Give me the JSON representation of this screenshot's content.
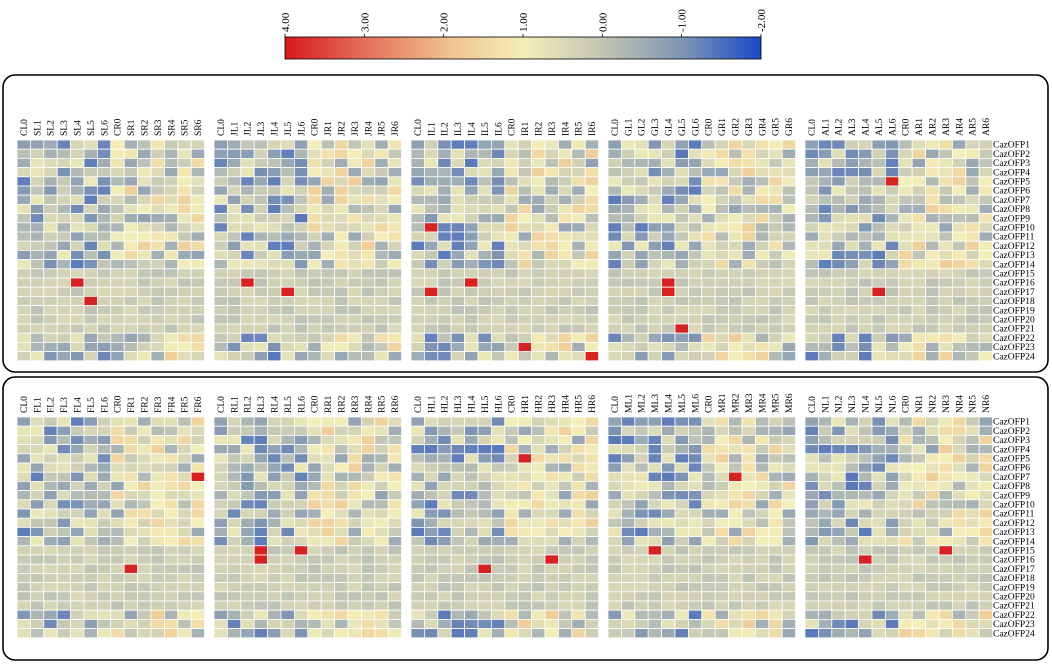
{
  "chart_data": {
    "type": "heatmap",
    "title": "",
    "colorbar": {
      "ticks": [
        "4.00",
        "3.00",
        "2.00",
        "1.00",
        "0.00",
        "-1.00",
        "-2.00"
      ],
      "tick_values": [
        4,
        3,
        2,
        1,
        0,
        -1,
        -2
      ],
      "range": [
        -2,
        4
      ],
      "colors": {
        "max": "#d7191c",
        "mid": "#f3efb8",
        "zero": "#cfd0b5",
        "neg1": "#8197b3",
        "min": "#1a49c7"
      }
    },
    "rows": [
      "CazOFP1",
      "CazOFP2",
      "CazOFP3",
      "CazOFP4",
      "CazOFP5",
      "CazOFP6",
      "CazOFP7",
      "CazOFP8",
      "CazOFP9",
      "CazOFP10",
      "CazOFP11",
      "CazOFP12",
      "CazOFP13",
      "CazOFP14",
      "CazOFP15",
      "CazOFP16",
      "CazOFP17",
      "CazOFP18",
      "CazOFP19",
      "CazOFP20",
      "CazOFP21",
      "CazOFP22",
      "CazOFP23",
      "CazOFP24"
    ],
    "panels": [
      {
        "columns": [
          "CL0",
          "SL1",
          "SL2",
          "SL3",
          "SL4",
          "SL5",
          "SL6",
          "CR0",
          "SR1",
          "SR2",
          "SR3",
          "SR4",
          "SR5",
          "SR6"
        ],
        "seed": 11,
        "hot": [
          [
            15,
            4
          ],
          [
            17,
            5
          ]
        ]
      },
      {
        "columns": [
          "CL0",
          "JL1",
          "JL2",
          "JL3",
          "JL4",
          "JL5",
          "JL6",
          "CR0",
          "JR1",
          "JR2",
          "JR3",
          "JR4",
          "JR5",
          "JR6"
        ],
        "seed": 23,
        "hot": [
          [
            15,
            2
          ],
          [
            16,
            5
          ]
        ]
      },
      {
        "columns": [
          "CL0",
          "IL1",
          "IL2",
          "IL3",
          "IL4",
          "IL5",
          "IL6",
          "CR0",
          "IR1",
          "IR2",
          "IR3",
          "IR4",
          "IR5",
          "IR6"
        ],
        "seed": 37,
        "hot": [
          [
            9,
            1
          ],
          [
            16,
            1
          ],
          [
            15,
            4
          ],
          [
            22,
            8
          ],
          [
            23,
            13
          ]
        ]
      },
      {
        "columns": [
          "CL0",
          "GL1",
          "GL2",
          "GL3",
          "GL4",
          "GL5",
          "GL6",
          "CR0",
          "GR1",
          "GR2",
          "GR3",
          "GR4",
          "GR5",
          "GR6"
        ],
        "seed": 41,
        "hot": [
          [
            15,
            4
          ],
          [
            16,
            4
          ],
          [
            20,
            5
          ]
        ]
      },
      {
        "columns": [
          "CL0",
          "AL1",
          "AL2",
          "AL3",
          "AL4",
          "AL5",
          "AL6",
          "CR0",
          "AR1",
          "AR2",
          "AR3",
          "AR4",
          "AR5",
          "AR6"
        ],
        "seed": 53,
        "hot": [
          [
            16,
            5
          ],
          [
            4,
            6
          ]
        ]
      },
      {
        "columns": [
          "CL0",
          "FL1",
          "FL2",
          "FL3",
          "FL4",
          "FL5",
          "FL6",
          "CR0",
          "FR1",
          "FR2",
          "FR3",
          "FR4",
          "FR5",
          "FR6"
        ],
        "seed": 61,
        "hot": [
          [
            16,
            8
          ],
          [
            6,
            13
          ]
        ]
      },
      {
        "columns": [
          "CL0",
          "RL1",
          "RL2",
          "RL3",
          "RL4",
          "RL5",
          "RL6",
          "CR0",
          "RR1",
          "RR2",
          "RR3",
          "RR4",
          "RR5",
          "RR6"
        ],
        "seed": 71,
        "hot": [
          [
            14,
            3
          ],
          [
            15,
            3
          ],
          [
            14,
            6
          ]
        ]
      },
      {
        "columns": [
          "CL0",
          "HL1",
          "HL2",
          "HL3",
          "HL4",
          "HL5",
          "HL6",
          "CR0",
          "HR1",
          "HR2",
          "HR3",
          "HR4",
          "HR5",
          "HR6"
        ],
        "seed": 83,
        "hot": [
          [
            16,
            5
          ],
          [
            15,
            10
          ],
          [
            4,
            8
          ]
        ]
      },
      {
        "columns": [
          "CL0",
          "ML1",
          "ML2",
          "ML3",
          "ML4",
          "ML5",
          "ML6",
          "CR0",
          "MR1",
          "MR2",
          "MR3",
          "MR4",
          "MR5",
          "MR6"
        ],
        "seed": 97,
        "hot": [
          [
            14,
            3
          ],
          [
            6,
            9
          ]
        ]
      },
      {
        "columns": [
          "CL0",
          "NL1",
          "NL2",
          "NL3",
          "NL4",
          "NL5",
          "NL6",
          "CR0",
          "NR1",
          "NR2",
          "NR3",
          "NR4",
          "NR5",
          "NR6"
        ],
        "seed": 101,
        "hot": [
          [
            15,
            4
          ],
          [
            14,
            10
          ]
        ]
      }
    ],
    "legend": "top-center"
  }
}
